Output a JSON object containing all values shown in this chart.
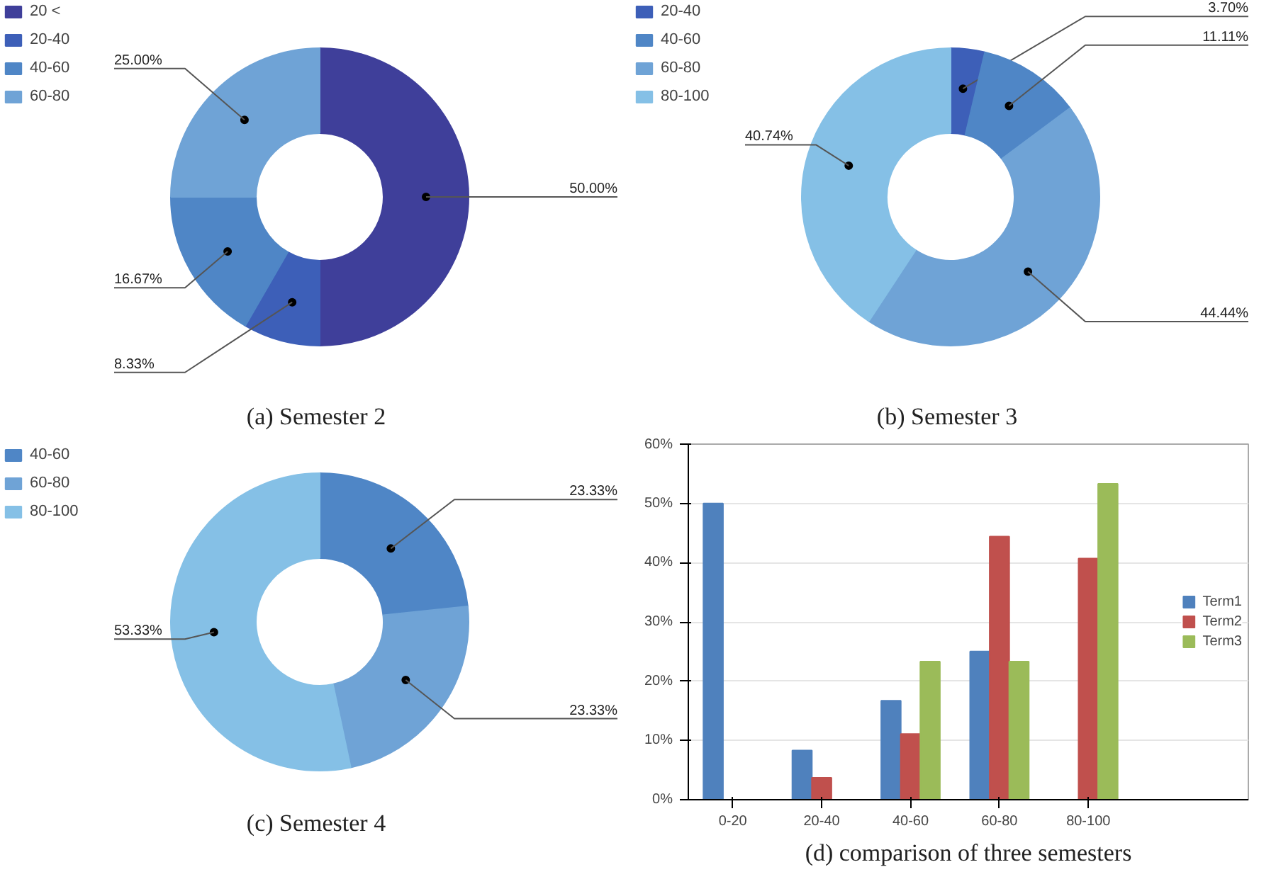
{
  "chart_data": [
    {
      "type": "donut",
      "title": "(a) Semester 2",
      "categories": [
        "20 <",
        "20-40",
        "40-60",
        "60-80"
      ],
      "values": [
        50,
        8.33,
        16.67,
        25
      ],
      "value_labels": [
        "50.00%",
        "8.33%",
        "16.67%",
        "25.00%"
      ],
      "colors": [
        "#3f3f9a",
        "#3d5fb8",
        "#4f86c6",
        "#6fa3d6"
      ],
      "legend": "top left"
    },
    {
      "type": "donut",
      "title": "(b) Semester 3",
      "categories": [
        "20-40",
        "40-60",
        "60-80",
        "80-100"
      ],
      "values": [
        3.7,
        11.11,
        44.44,
        40.74
      ],
      "value_labels": [
        "3.70%",
        "11.11%",
        "44.44%",
        "40.74%"
      ],
      "colors": [
        "#3d5fb8",
        "#4f86c6",
        "#6fa3d6",
        "#85c0e6"
      ],
      "legend": "top left"
    },
    {
      "type": "donut",
      "title": "(c) Semester 4",
      "categories": [
        "40-60",
        "60-80",
        "80-100"
      ],
      "values": [
        23.33,
        23.33,
        53.33
      ],
      "value_labels": [
        "23.33%",
        "23.33%",
        "53.33%"
      ],
      "colors": [
        "#4f86c6",
        "#6fa3d6",
        "#85c0e6"
      ],
      "legend": "top left"
    },
    {
      "type": "bar",
      "title": "(d) comparison of three semesters",
      "categories": [
        "0-20",
        "20-40",
        "40-60",
        "60-80",
        "80-100"
      ],
      "series": [
        {
          "name": "Term1",
          "color": "#4f81bd",
          "values": [
            50,
            8.3,
            16.7,
            25,
            null
          ]
        },
        {
          "name": "Term2",
          "color": "#c0504d",
          "values": [
            null,
            3.7,
            11.1,
            44.4,
            40.7
          ]
        },
        {
          "name": "Term3",
          "color": "#9bbb59",
          "values": [
            null,
            null,
            23.3,
            23.3,
            53.3
          ]
        }
      ],
      "ylim": [
        0,
        60
      ],
      "yticks": [
        {
          "value": 0,
          "label": "0%"
        },
        {
          "value": 10,
          "label": "10%"
        },
        {
          "value": 20,
          "label": "20%"
        },
        {
          "value": 30,
          "label": "30%"
        },
        {
          "value": 40,
          "label": "40%"
        },
        {
          "value": 50,
          "label": "50%"
        },
        {
          "value": 60,
          "label": "60%"
        }
      ],
      "grid": "y",
      "legend": "right"
    }
  ]
}
